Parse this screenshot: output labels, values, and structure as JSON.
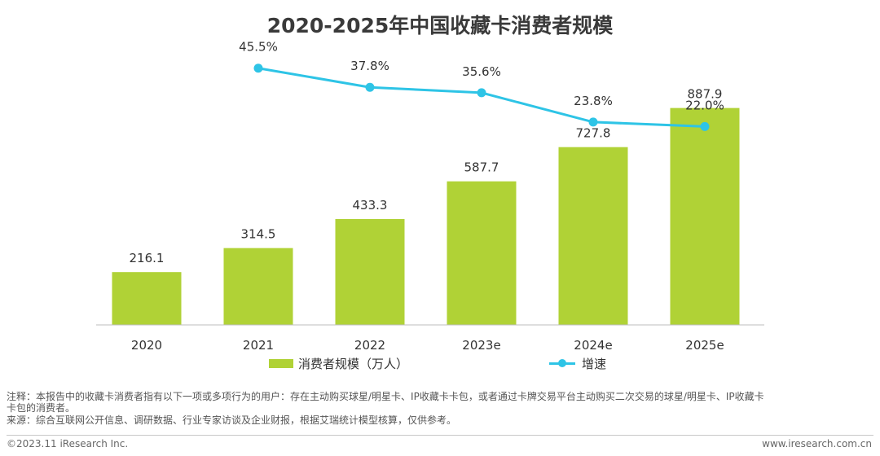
{
  "title": "2020-2025年中国收藏卡消费者规模",
  "chart_data": {
    "type": "bar",
    "categories": [
      "2020",
      "2021",
      "2022",
      "2023e",
      "2024e",
      "2025e"
    ],
    "series": [
      {
        "name": "消费者规模（万人）",
        "type": "bar",
        "color": "#b0d236",
        "values": [
          216.1,
          314.5,
          433.3,
          587.7,
          727.8,
          887.9
        ],
        "labels": [
          "216.1",
          "314.5",
          "433.3",
          "587.7",
          "727.8",
          "887.9"
        ]
      },
      {
        "name": "增速",
        "type": "line",
        "color": "#2ec4e6",
        "values": [
          null,
          45.5,
          37.8,
          35.6,
          23.8,
          22.0
        ],
        "labels": [
          "",
          "45.5%",
          "37.8%",
          "35.6%",
          "23.8%",
          "22.0%"
        ]
      }
    ],
    "ylim": [
      0,
      1100
    ],
    "growth_ylim": [
      0,
      50
    ]
  },
  "legend": {
    "bar": "消费者规模（万人）",
    "line": "增速"
  },
  "notes": {
    "line1": "注释：本报告中的收藏卡消费者指有以下一项或多项行为的用户：存在主动购买球星/明星卡、IP收藏卡卡包，或者通过卡牌交易平台主动购买二次交易的球星/明星卡、IP收藏卡",
    "line2": "卡包的消费者。",
    "line3": "来源：综合互联网公开信息、调研数据、行业专家访谈及企业财报，根据艾瑞统计模型核算，仅供参考。"
  },
  "footer": {
    "copyright": "©2023.11 iResearch Inc.",
    "website": "www.iresearch.com.cn"
  }
}
